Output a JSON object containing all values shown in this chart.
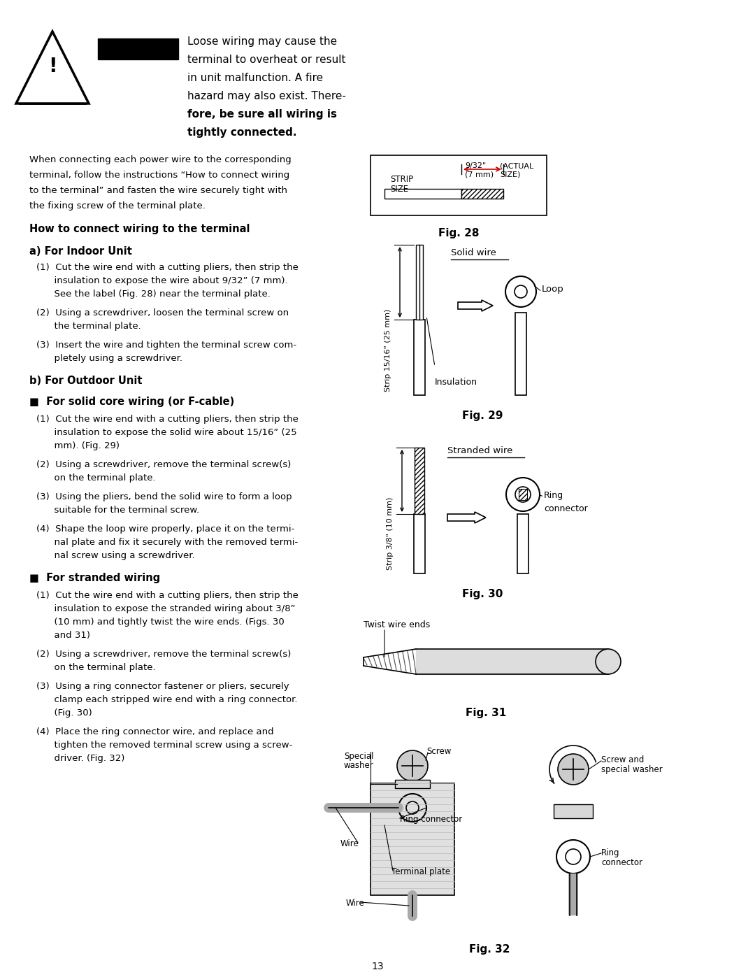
{
  "page_bg": "#ffffff",
  "page_number": "13",
  "warning_lines": [
    "Loose wiring may cause the",
    "terminal to overheat or result",
    "in unit malfunction. A fire",
    "hazard may also exist. There-",
    "fore, be sure all wiring is",
    "tightly connected."
  ],
  "intro_lines": [
    "When connecting each power wire to the corresponding",
    "terminal, follow the instructions “How to connect wiring",
    "to the terminal” and fasten the wire securely tight with",
    "the fixing screw of the terminal plate."
  ],
  "section_title": "How to connect wiring to the terminal",
  "sub_a": "a) For Indoor Unit",
  "indoor_items": [
    [
      "(1)  Cut the wire end with a cutting pliers, then strip the",
      "      insulation to expose the wire about 9/32” (7 mm).",
      "      See the label (Fig. 28) near the terminal plate."
    ],
    [
      "(2)  Using a screwdriver, loosen the terminal screw on",
      "      the terminal plate."
    ],
    [
      "(3)  Insert the wire and tighten the terminal screw com-",
      "      pletely using a screwdriver."
    ]
  ],
  "sub_b": "b) For Outdoor Unit",
  "solid_title": "■  For solid core wiring (or F-cable)",
  "solid_items": [
    [
      "(1)  Cut the wire end with a cutting pliers, then strip the",
      "      insulation to expose the solid wire about 15/16” (25",
      "      mm). (Fig. 29)"
    ],
    [
      "(2)  Using a screwdriver, remove the terminal screw(s)",
      "      on the terminal plate."
    ],
    [
      "(3)  Using the pliers, bend the solid wire to form a loop",
      "      suitable for the terminal screw."
    ],
    [
      "(4)  Shape the loop wire properly, place it on the termi-",
      "      nal plate and fix it securely with the removed termi-",
      "      nal screw using a screwdriver."
    ]
  ],
  "stranded_title": "■  For stranded wiring",
  "stranded_items": [
    [
      "(1)  Cut the wire end with a cutting pliers, then strip the",
      "      insulation to expose the stranded wiring about 3/8”",
      "      (10 mm) and tightly twist the wire ends. (Figs. 30",
      "      and 31)"
    ],
    [
      "(2)  Using a screwdriver, remove the terminal screw(s)",
      "      on the terminal plate."
    ],
    [
      "(3)  Using a ring connector fastener or pliers, securely",
      "      clamp each stripped wire end with a ring connector.",
      "      (Fig. 30)"
    ],
    [
      "(4)  Place the ring connector wire, and replace and",
      "      tighten the removed terminal screw using a screw-",
      "      driver. (Fig. 32)"
    ]
  ],
  "fig_labels": [
    "Fig. 28",
    "Fig. 29",
    "Fig. 30",
    "Fig. 31",
    "Fig. 32"
  ],
  "text_color": "#000000",
  "bg_color": "#ffffff"
}
